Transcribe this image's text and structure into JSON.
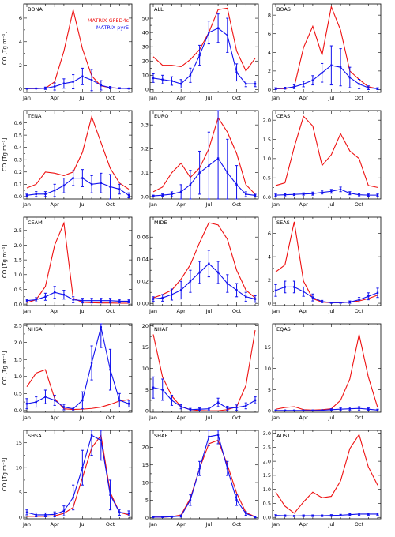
{
  "figure": {
    "y_axis_label": "CO [Tg m⁻¹]",
    "month_tick_labels": [
      "Jan",
      "Apr",
      "Jul",
      "Oct"
    ],
    "legend": [
      {
        "label": "MATRIX-GFED4s",
        "color": "#ee1111"
      },
      {
        "label": "MATRIX-pyrE",
        "color": "#1111ee"
      }
    ]
  },
  "chart_data": [
    {
      "type": "line",
      "title": "BONA",
      "xlim": [
        1,
        12
      ],
      "ylim": [
        -0.3,
        7.2
      ],
      "yticks": [
        0,
        2,
        4,
        6
      ],
      "yticklabels": [
        "0",
        "2",
        "4",
        "6"
      ],
      "series": [
        {
          "name": "MATRIX-GFED4s",
          "color": "#ee1111",
          "values": [
            0.02,
            0.02,
            0.05,
            0.6,
            3.2,
            6.7,
            3.4,
            1.1,
            0.25,
            0.1,
            0.05,
            0.03
          ]
        },
        {
          "name": "MATRIX-pyrE",
          "color": "#1111ee",
          "values": [
            0.02,
            0.03,
            0.05,
            0.2,
            0.45,
            0.6,
            1.05,
            0.75,
            0.3,
            0.1,
            0.05,
            0.03
          ],
          "err": [
            0.02,
            0.03,
            0.1,
            0.3,
            0.4,
            0.6,
            0.7,
            0.9,
            0.4,
            0.1,
            0.05,
            0.03
          ]
        }
      ]
    },
    {
      "type": "line",
      "title": "ALL",
      "xlim": [
        1,
        12
      ],
      "ylim": [
        -2,
        60
      ],
      "yticks": [
        0,
        10,
        20,
        30,
        40,
        50
      ],
      "yticklabels": [
        "0",
        "10",
        "20",
        "30",
        "40",
        "50"
      ],
      "series": [
        {
          "name": "MATRIX-GFED4s",
          "color": "#ee1111",
          "values": [
            23,
            17,
            17,
            16,
            21,
            28,
            40,
            56,
            57,
            27,
            13,
            22
          ]
        },
        {
          "name": "MATRIX-pyrE",
          "color": "#1111ee",
          "values": [
            8,
            7,
            6,
            4,
            10,
            24,
            40,
            43,
            38,
            12,
            4,
            4
          ],
          "err": [
            3,
            3,
            3,
            3,
            5,
            7,
            8,
            10,
            12,
            6,
            2,
            2
          ]
        }
      ]
    },
    {
      "type": "line",
      "title": "BOAS",
      "xlim": [
        1,
        12
      ],
      "ylim": [
        -0.3,
        9.2
      ],
      "yticks": [
        0,
        2,
        4,
        6,
        8
      ],
      "yticklabels": [
        "0",
        "2",
        "4",
        "6",
        "8"
      ],
      "series": [
        {
          "name": "MATRIX-GFED4s",
          "color": "#ee1111",
          "values": [
            0.1,
            0.1,
            0.3,
            4.5,
            6.8,
            3.7,
            8.9,
            6.4,
            2.0,
            1.1,
            0.3,
            0.1
          ]
        },
        {
          "name": "MATRIX-pyrE",
          "color": "#1111ee",
          "values": [
            0.1,
            0.15,
            0.3,
            0.6,
            1.0,
            1.8,
            2.6,
            2.4,
            1.3,
            0.6,
            0.2,
            0.1
          ],
          "err": [
            0.1,
            0.1,
            0.2,
            0.3,
            0.5,
            1.0,
            2.1,
            2.0,
            1.1,
            0.5,
            0.2,
            0.1
          ]
        }
      ]
    },
    {
      "type": "line",
      "title": "TENA",
      "xlim": [
        1,
        12
      ],
      "ylim": [
        -0.02,
        0.7
      ],
      "yticks": [
        0,
        0.1,
        0.2,
        0.3,
        0.4,
        0.5,
        0.6
      ],
      "yticklabels": [
        "0.0",
        "0.1",
        "0.2",
        "0.3",
        "0.4",
        "0.5",
        "0.6"
      ],
      "series": [
        {
          "name": "MATRIX-GFED4s",
          "color": "#ee1111",
          "values": [
            0.07,
            0.1,
            0.2,
            0.19,
            0.17,
            0.2,
            0.36,
            0.65,
            0.44,
            0.23,
            0.11,
            0.06
          ]
        },
        {
          "name": "MATRIX-pyrE",
          "color": "#1111ee",
          "values": [
            0.01,
            0.02,
            0.02,
            0.05,
            0.09,
            0.15,
            0.15,
            0.1,
            0.11,
            0.08,
            0.06,
            0.01
          ],
          "err": [
            0.01,
            0.02,
            0.02,
            0.05,
            0.06,
            0.06,
            0.07,
            0.07,
            0.08,
            0.1,
            0.04,
            0.02
          ]
        }
      ]
    },
    {
      "type": "line",
      "title": "EURO",
      "xlim": [
        1,
        12
      ],
      "ylim": [
        -0.01,
        0.36
      ],
      "yticks": [
        0,
        0.1,
        0.2,
        0.3
      ],
      "yticklabels": [
        "0.0",
        "0.1",
        "0.2",
        "0.3"
      ],
      "series": [
        {
          "name": "MATRIX-GFED4s",
          "color": "#ee1111",
          "values": [
            0.02,
            0.04,
            0.1,
            0.14,
            0.08,
            0.12,
            0.2,
            0.33,
            0.27,
            0.18,
            0.05,
            0.01
          ]
        },
        {
          "name": "MATRIX-pyrE",
          "color": "#1111ee",
          "values": [
            0.003,
            0.006,
            0.01,
            0.02,
            0.05,
            0.1,
            0.13,
            0.16,
            0.1,
            0.05,
            0.01,
            0.005
          ],
          "err": [
            0.003,
            0.005,
            0.01,
            0.03,
            0.06,
            0.09,
            0.14,
            0.2,
            0.14,
            0.08,
            0.01,
            0.005
          ]
        }
      ]
    },
    {
      "type": "line",
      "title": "CEAS",
      "xlim": [
        1,
        12
      ],
      "ylim": [
        -0.05,
        2.25
      ],
      "yticks": [
        0,
        0.5,
        1.0,
        1.5,
        2.0
      ],
      "yticklabels": [
        "0.0",
        "0.5",
        "1.0",
        "1.5",
        "2.0"
      ],
      "series": [
        {
          "name": "MATRIX-GFED4s",
          "color": "#ee1111",
          "values": [
            0.3,
            0.37,
            1.3,
            2.1,
            1.85,
            0.82,
            1.1,
            1.65,
            1.2,
            1.0,
            0.3,
            0.25
          ]
        },
        {
          "name": "MATRIX-pyrE",
          "color": "#1111ee",
          "values": [
            0.05,
            0.06,
            0.07,
            0.08,
            0.09,
            0.12,
            0.15,
            0.2,
            0.1,
            0.06,
            0.05,
            0.05
          ],
          "err": [
            0.03,
            0.03,
            0.03,
            0.03,
            0.04,
            0.04,
            0.05,
            0.06,
            0.04,
            0.03,
            0.03,
            0.03
          ]
        }
      ]
    },
    {
      "type": "line",
      "title": "CEAM",
      "xlim": [
        1,
        12
      ],
      "ylim": [
        -0.05,
        2.95
      ],
      "yticks": [
        0,
        0.5,
        1.0,
        1.5,
        2.0,
        2.5
      ],
      "yticklabels": [
        "0.0",
        "0.5",
        "1.0",
        "1.5",
        "2.0",
        "2.5"
      ],
      "series": [
        {
          "name": "MATRIX-GFED4s",
          "color": "#ee1111",
          "values": [
            0.05,
            0.15,
            0.6,
            2.0,
            2.75,
            0.2,
            0.06,
            0.05,
            0.04,
            0.04,
            0.03,
            0.03
          ]
        },
        {
          "name": "MATRIX-pyrE",
          "color": "#1111ee",
          "values": [
            0.12,
            0.15,
            0.25,
            0.4,
            0.32,
            0.15,
            0.12,
            0.12,
            0.12,
            0.12,
            0.1,
            0.1
          ],
          "err": [
            0.05,
            0.07,
            0.12,
            0.2,
            0.15,
            0.1,
            0.08,
            0.08,
            0.08,
            0.08,
            0.06,
            0.06
          ]
        }
      ]
    },
    {
      "type": "line",
      "title": "MIDE",
      "xlim": [
        1,
        12
      ],
      "ylim": [
        -0.002,
        0.078
      ],
      "yticks": [
        0,
        0.02,
        0.04,
        0.06
      ],
      "yticklabels": [
        "0.00",
        "0.02",
        "0.04",
        "0.06"
      ],
      "series": [
        {
          "name": "MATRIX-GFED4s",
          "color": "#ee1111",
          "values": [
            0.005,
            0.008,
            0.012,
            0.022,
            0.035,
            0.055,
            0.073,
            0.071,
            0.058,
            0.03,
            0.012,
            0.005
          ]
        },
        {
          "name": "MATRIX-pyrE",
          "color": "#1111ee",
          "values": [
            0.004,
            0.005,
            0.008,
            0.012,
            0.02,
            0.028,
            0.036,
            0.028,
            0.018,
            0.012,
            0.006,
            0.004
          ],
          "err": [
            0.002,
            0.003,
            0.005,
            0.008,
            0.01,
            0.01,
            0.012,
            0.01,
            0.008,
            0.006,
            0.004,
            0.003
          ]
        }
      ]
    },
    {
      "type": "line",
      "title": "SEAS",
      "xlim": [
        1,
        12
      ],
      "ylim": [
        -0.2,
        7.4
      ],
      "yticks": [
        0,
        2,
        4,
        6
      ],
      "yticklabels": [
        "0",
        "2",
        "4",
        "6"
      ],
      "series": [
        {
          "name": "MATRIX-GFED4s",
          "color": "#ee1111",
          "values": [
            2.7,
            3.3,
            7.0,
            1.9,
            0.4,
            0.1,
            0.05,
            0.05,
            0.1,
            0.2,
            0.4,
            0.7
          ]
        },
        {
          "name": "MATRIX-pyrE",
          "color": "#1111ee",
          "values": [
            1.1,
            1.4,
            1.4,
            1.0,
            0.5,
            0.15,
            0.05,
            0.05,
            0.1,
            0.3,
            0.6,
            0.9
          ],
          "err": [
            0.5,
            0.5,
            0.5,
            0.4,
            0.3,
            0.1,
            0.05,
            0.05,
            0.1,
            0.2,
            0.3,
            0.4
          ]
        }
      ]
    },
    {
      "type": "line",
      "title": "NHSA",
      "xlim": [
        1,
        12
      ],
      "ylim": [
        -0.05,
        2.55
      ],
      "yticks": [
        0,
        0.5,
        1.0,
        1.5,
        2.0,
        2.5
      ],
      "yticklabels": [
        "0.0",
        "0.5",
        "1.0",
        "1.5",
        "2.0",
        "2.5"
      ],
      "series": [
        {
          "name": "MATRIX-GFED4s",
          "color": "#ee1111",
          "values": [
            0.7,
            1.1,
            1.2,
            0.35,
            0.05,
            0.03,
            0.04,
            0.06,
            0.1,
            0.18,
            0.28,
            0.32
          ]
        },
        {
          "name": "MATRIX-pyrE",
          "color": "#1111ee",
          "values": [
            0.2,
            0.25,
            0.4,
            0.3,
            0.1,
            0.05,
            0.3,
            1.4,
            2.45,
            1.2,
            0.3,
            0.2
          ],
          "err": [
            0.15,
            0.15,
            0.2,
            0.15,
            0.08,
            0.05,
            0.25,
            0.5,
            0.6,
            0.6,
            0.2,
            0.1
          ]
        }
      ]
    },
    {
      "type": "line",
      "title": "NHAF",
      "xlim": [
        1,
        12
      ],
      "ylim": [
        -0.3,
        20.5
      ],
      "yticks": [
        0,
        5,
        10,
        15,
        20
      ],
      "yticklabels": [
        "0",
        "5",
        "10",
        "15",
        "20"
      ],
      "series": [
        {
          "name": "MATRIX-GFED4s",
          "color": "#ee1111",
          "values": [
            18.0,
            8.0,
            3.5,
            1.0,
            0.3,
            0.1,
            0.05,
            0.05,
            0.3,
            1.0,
            6.0,
            19.0
          ]
        },
        {
          "name": "MATRIX-pyrE",
          "color": "#1111ee",
          "values": [
            5.5,
            5.0,
            2.5,
            1.0,
            0.3,
            0.4,
            0.5,
            2.0,
            0.6,
            0.8,
            1.2,
            2.5
          ],
          "err": [
            2.5,
            2.5,
            1.2,
            0.5,
            0.3,
            0.3,
            0.4,
            1.0,
            0.5,
            0.6,
            0.7,
            0.8
          ]
        }
      ]
    },
    {
      "type": "line",
      "title": "EQAS",
      "xlim": [
        1,
        12
      ],
      "ylim": [
        -0.3,
        20.5
      ],
      "yticks": [
        0,
        5,
        10,
        15
      ],
      "yticklabels": [
        "0",
        "5",
        "10",
        "15"
      ],
      "series": [
        {
          "name": "MATRIX-GFED4s",
          "color": "#ee1111",
          "values": [
            0.4,
            0.8,
            1.0,
            0.3,
            0.2,
            0.3,
            0.5,
            2.5,
            7.5,
            18.0,
            8.0,
            0.8
          ]
        },
        {
          "name": "MATRIX-pyrE",
          "color": "#1111ee",
          "values": [
            0.1,
            0.1,
            0.1,
            0.1,
            0.1,
            0.15,
            0.3,
            0.4,
            0.5,
            0.6,
            0.4,
            0.2
          ],
          "err": [
            0.1,
            0.1,
            0.1,
            0.1,
            0.1,
            0.1,
            0.2,
            0.3,
            0.4,
            0.4,
            0.3,
            0.2
          ]
        }
      ]
    },
    {
      "type": "line",
      "title": "SHSA",
      "xlim": [
        1,
        12
      ],
      "ylim": [
        -0.3,
        17.5
      ],
      "yticks": [
        0,
        5,
        10,
        15
      ],
      "yticklabels": [
        "0",
        "5",
        "10",
        "15"
      ],
      "series": [
        {
          "name": "MATRIX-GFED4s",
          "color": "#ee1111",
          "values": [
            0.2,
            0.2,
            0.2,
            0.3,
            0.8,
            2.0,
            8.0,
            14.0,
            16.5,
            5.0,
            1.0,
            0.5
          ]
        },
        {
          "name": "MATRIX-pyrE",
          "color": "#1111ee",
          "values": [
            1.0,
            0.5,
            0.5,
            0.6,
            1.3,
            4.0,
            10.0,
            16.5,
            15.5,
            4.5,
            1.0,
            0.8
          ],
          "err": [
            0.5,
            0.4,
            0.4,
            0.5,
            1.0,
            2.5,
            3.5,
            4.0,
            4.0,
            3.0,
            0.6,
            0.5
          ]
        }
      ]
    },
    {
      "type": "line",
      "title": "SHAF",
      "xlim": [
        1,
        12
      ],
      "ylim": [
        -0.3,
        24.8
      ],
      "yticks": [
        0,
        5,
        10,
        15,
        20
      ],
      "yticklabels": [
        "0",
        "5",
        "10",
        "15",
        "20"
      ],
      "series": [
        {
          "name": "MATRIX-GFED4s",
          "color": "#ee1111",
          "values": [
            0.2,
            0.2,
            0.3,
            0.8,
            5.5,
            14.0,
            21.0,
            22.0,
            15.0,
            7.0,
            1.5,
            0.3
          ]
        },
        {
          "name": "MATRIX-pyrE",
          "color": "#1111ee",
          "values": [
            0.2,
            0.2,
            0.3,
            0.5,
            5.0,
            14.0,
            23.0,
            23.5,
            14.0,
            5.0,
            1.2,
            0.2
          ],
          "err": [
            0.1,
            0.1,
            0.2,
            0.3,
            1.5,
            2.0,
            2.5,
            2.5,
            2.0,
            1.5,
            0.5,
            0.2
          ]
        }
      ]
    },
    {
      "type": "line",
      "title": "AUST",
      "xlim": [
        1,
        12
      ],
      "ylim": [
        -0.05,
        3.1
      ],
      "yticks": [
        0,
        0.5,
        1.0,
        1.5,
        2.0,
        2.5,
        3.0
      ],
      "yticklabels": [
        "0.0",
        "0.5",
        "1.0",
        "1.5",
        "2.0",
        "2.5",
        "3.0"
      ],
      "series": [
        {
          "name": "MATRIX-GFED4s",
          "color": "#ee1111",
          "values": [
            0.9,
            0.4,
            0.15,
            0.55,
            0.9,
            0.7,
            0.75,
            1.3,
            2.45,
            2.95,
            1.8,
            1.15
          ]
        },
        {
          "name": "MATRIX-pyrE",
          "color": "#1111ee",
          "values": [
            0.07,
            0.06,
            0.05,
            0.06,
            0.06,
            0.06,
            0.07,
            0.08,
            0.1,
            0.12,
            0.12,
            0.12
          ],
          "err": [
            0.03,
            0.03,
            0.02,
            0.03,
            0.03,
            0.03,
            0.03,
            0.03,
            0.04,
            0.04,
            0.04,
            0.04
          ]
        }
      ]
    }
  ]
}
